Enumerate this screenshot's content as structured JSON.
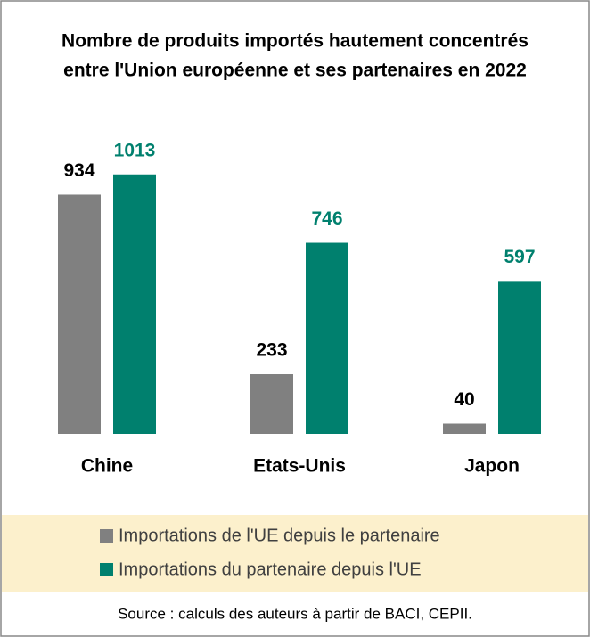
{
  "chart_data": {
    "type": "bar",
    "title": [
      "Nombre de produits importés hautement concentrés",
      "entre l'Union européenne et ses partenaires en 2022"
    ],
    "categories": [
      "Chine",
      "Etats-Unis",
      "Japon"
    ],
    "series": [
      {
        "name": "Importations de l'UE depuis le partenaire",
        "color": "#808080",
        "label_color": "#000000",
        "values": [
          934,
          233,
          40
        ]
      },
      {
        "name": "Importations du partenaire depuis l'UE",
        "color": "#00806e",
        "label_color": "#00806e",
        "values": [
          1013,
          746,
          597
        ]
      }
    ],
    "ylim": [
      0,
      1200
    ],
    "source": "Source : calculs des auteurs à partir de BACI, CEPII."
  }
}
